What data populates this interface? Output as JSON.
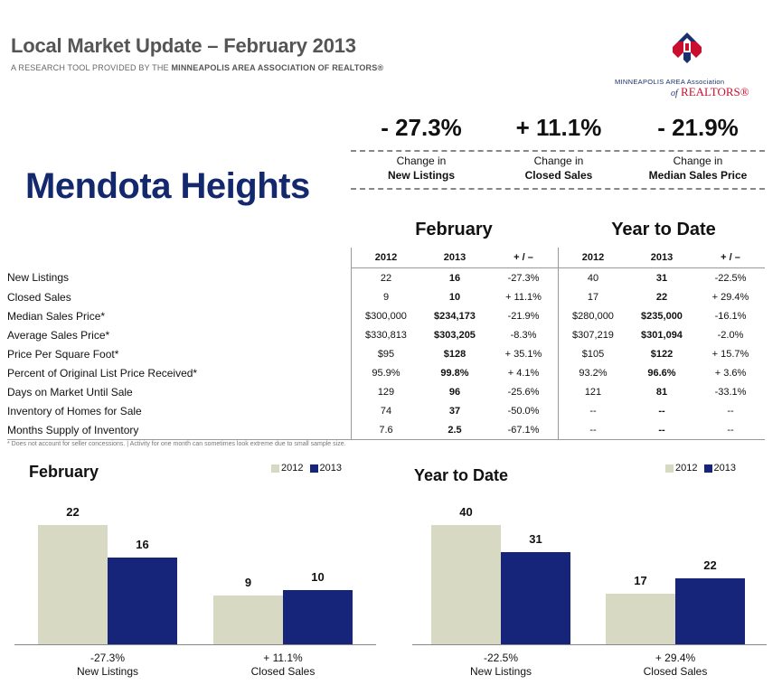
{
  "header": {
    "title": "Local Market Update – February 2013",
    "subtitle_prefix": "A RESEARCH TOOL PROVIDED BY THE ",
    "subtitle_org": "MINNEAPOLIS AREA ASSOCIATION OF REALTORS®"
  },
  "logo": {
    "line1": "MINNEAPOLIS AREA Association",
    "of": "of",
    "line2": "REALTORS®",
    "colors": {
      "red": "#c8102e",
      "navy": "#1a2f6e"
    }
  },
  "city": "Mendota Heights",
  "kpis": [
    {
      "value": "- 27.3%",
      "line1": "Change in",
      "line2": "New Listings"
    },
    {
      "value": "+ 11.1%",
      "line1": "Change in",
      "line2": "Closed Sales"
    },
    {
      "value": "- 21.9%",
      "line1": "Change in",
      "line2": "Median Sales Price"
    }
  ],
  "periods": {
    "month": "February",
    "ytd": "Year to Date"
  },
  "table": {
    "columns": [
      "2012",
      "2013",
      "+ / –",
      "2012",
      "2013",
      "+ / –"
    ],
    "rows": [
      {
        "label": "New Listings",
        "m12": "22",
        "m13": "16",
        "mchg": "-27.3%",
        "y12": "40",
        "y13": "31",
        "ychg": "-22.5%"
      },
      {
        "label": "Closed Sales",
        "m12": "9",
        "m13": "10",
        "mchg": "+ 11.1%",
        "y12": "17",
        "y13": "22",
        "ychg": "+ 29.4%"
      },
      {
        "label": "Median Sales Price*",
        "m12": "$300,000",
        "m13": "$234,173",
        "mchg": "-21.9%",
        "y12": "$280,000",
        "y13": "$235,000",
        "ychg": "-16.1%"
      },
      {
        "label": "Average Sales Price*",
        "m12": "$330,813",
        "m13": "$303,205",
        "mchg": "-8.3%",
        "y12": "$307,219",
        "y13": "$301,094",
        "ychg": "-2.0%"
      },
      {
        "label": "Price Per Square Foot*",
        "m12": "$95",
        "m13": "$128",
        "mchg": "+ 35.1%",
        "y12": "$105",
        "y13": "$122",
        "ychg": "+ 15.7%"
      },
      {
        "label": "Percent of Original List Price Received*",
        "m12": "95.9%",
        "m13": "99.8%",
        "mchg": "+ 4.1%",
        "y12": "93.2%",
        "y13": "96.6%",
        "ychg": "+ 3.6%"
      },
      {
        "label": "Days on Market Until Sale",
        "m12": "129",
        "m13": "96",
        "mchg": "-25.6%",
        "y12": "121",
        "y13": "81",
        "ychg": "-33.1%"
      },
      {
        "label": "Inventory of Homes for Sale",
        "m12": "74",
        "m13": "37",
        "mchg": "-50.0%",
        "y12": "--",
        "y13": "--",
        "ychg": "--"
      },
      {
        "label": "Months Supply of Inventory",
        "m12": "7.6",
        "m13": "2.5",
        "mchg": "-67.1%",
        "y12": "--",
        "y13": "--",
        "ychg": "--"
      }
    ]
  },
  "footnote": "* Does not account for seller concessions.  |  Activity for one month can sometimes look extreme due to small sample size.",
  "colors": {
    "c2012": "#d7d9c3",
    "c2013": "#16257a",
    "title_navy": "#14286e"
  },
  "chart_data": [
    {
      "type": "bar",
      "title": "February",
      "categories": [
        "New Listings",
        "Closed Sales"
      ],
      "category_changes": [
        "-27.3%",
        "+ 11.1%"
      ],
      "series": [
        {
          "name": "2012",
          "values": [
            22,
            9
          ]
        },
        {
          "name": "2013",
          "values": [
            16,
            10
          ]
        }
      ],
      "legend": "top-right"
    },
    {
      "type": "bar",
      "title": "Year to Date",
      "categories": [
        "New Listings",
        "Closed Sales"
      ],
      "category_changes": [
        "-22.5%",
        "+ 29.4%"
      ],
      "series": [
        {
          "name": "2012",
          "values": [
            40,
            17
          ]
        },
        {
          "name": "2013",
          "values": [
            31,
            22
          ]
        }
      ],
      "legend": "top-right"
    }
  ]
}
